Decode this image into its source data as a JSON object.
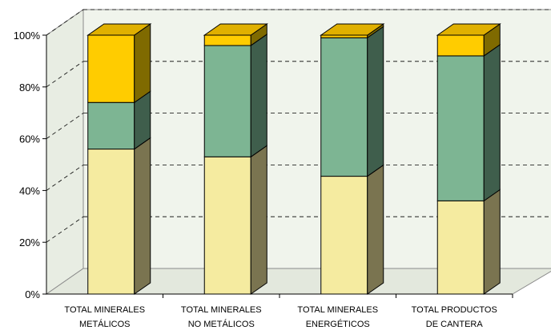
{
  "chart_data": {
    "type": "bar",
    "stacked": true,
    "normalized": true,
    "three_d": true,
    "categories": [
      [
        "TOTAL MINERALES",
        "METÁLICOS"
      ],
      [
        "TOTAL MINERALES",
        "NO METÁLICOS"
      ],
      [
        "TOTAL MINERALES",
        "ENERGÉTICOS"
      ],
      [
        "TOTAL PRODUCTOS",
        "DE CANTERA"
      ]
    ],
    "series": [
      {
        "values": [
          56,
          53,
          45.5,
          36
        ],
        "color": "#F5EBA0",
        "side_color": "#7A7450"
      },
      {
        "values": [
          18,
          43,
          53.5,
          56
        ],
        "color": "#7DB593",
        "side_color": "#3F5E4C"
      },
      {
        "values": [
          26,
          4,
          1,
          8
        ],
        "color": "#FFCC00",
        "side_color": "#7F6A00"
      }
    ],
    "y_ticks": [
      "0%",
      "20%",
      "40%",
      "60%",
      "80%",
      "100%"
    ],
    "ylim": [
      0,
      100
    ],
    "grid": true,
    "legend": "none"
  }
}
